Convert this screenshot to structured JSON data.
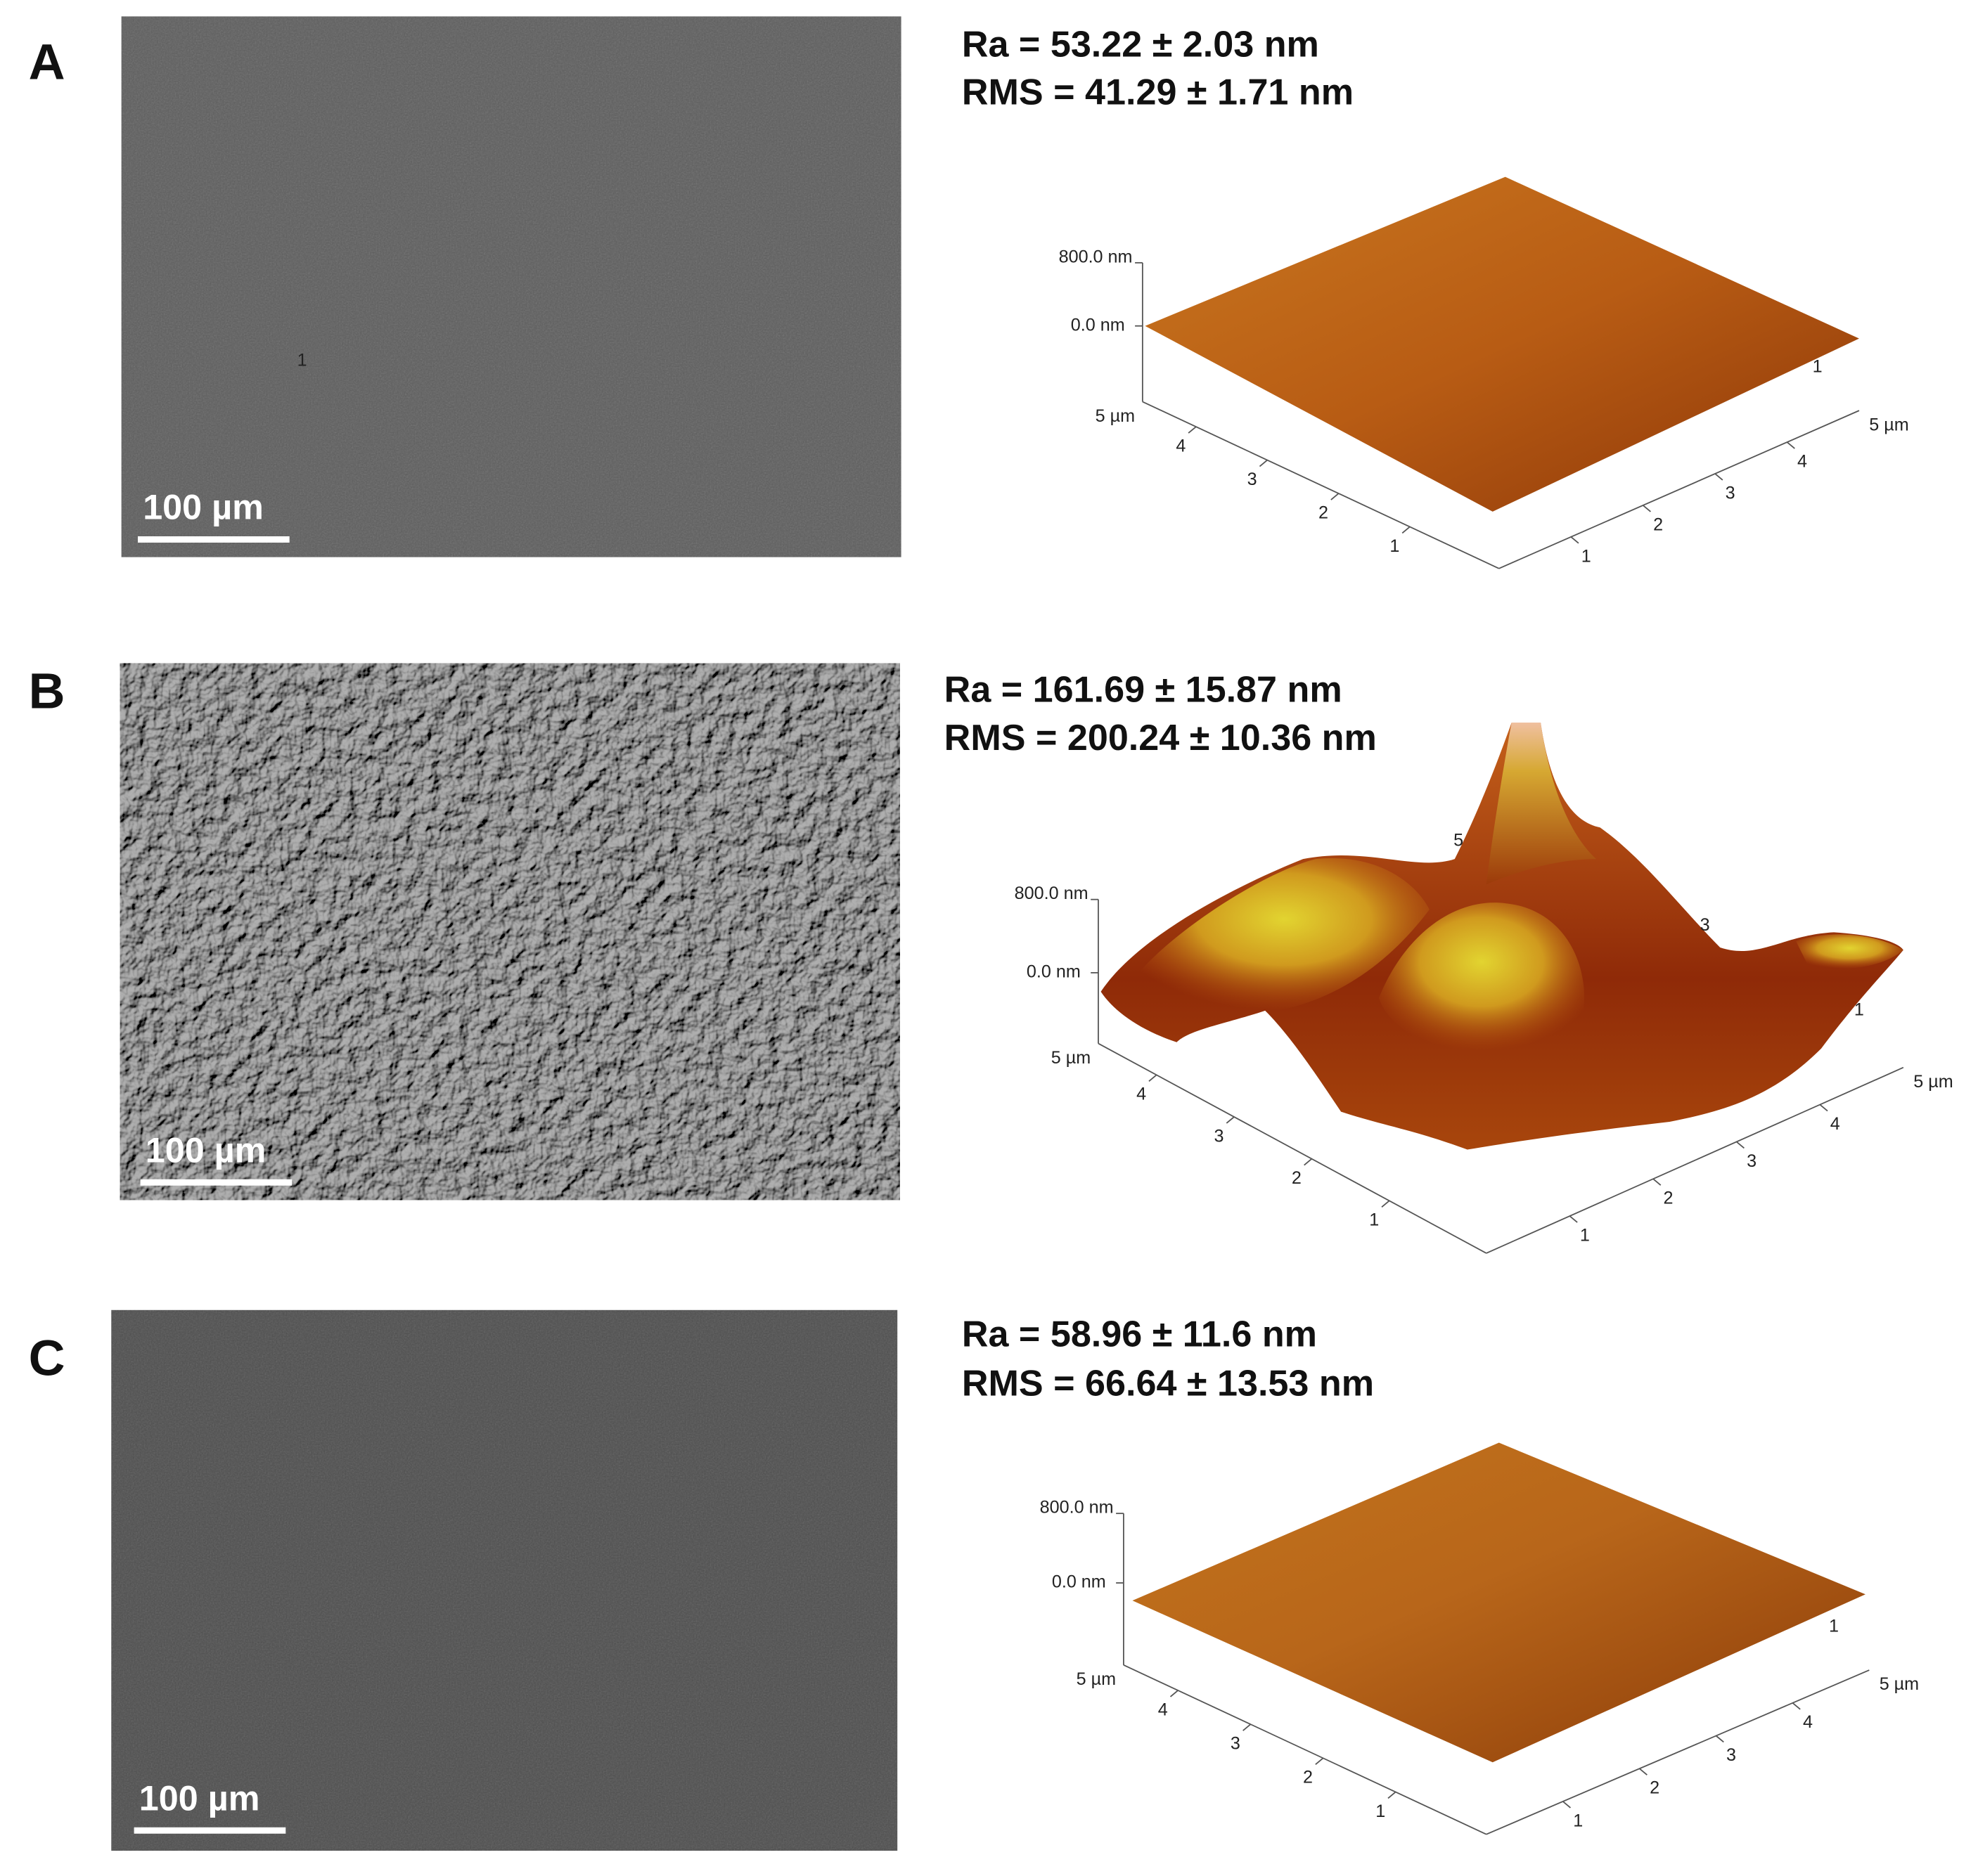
{
  "panels": [
    {
      "label": "A",
      "scale_bar": "100 µm",
      "ra": "Ra = 53.22 ± 2.03 nm",
      "rms": "RMS = 41.29 ± 1.71 nm",
      "afm": {
        "z_top": "800.0 nm",
        "z_zero": "0.0 nm",
        "y_axis_end": "5 µm",
        "y_ticks": [
          "4",
          "3",
          "2",
          "1"
        ],
        "x_ticks": [
          "1",
          "2",
          "3",
          "4"
        ],
        "x_axis_end": "5 µm",
        "extra_labels": [
          "1",
          "1"
        ]
      }
    },
    {
      "label": "B",
      "scale_bar": "100 µm",
      "ra": "Ra = 161.69 ± 15.87 nm",
      "rms": "RMS = 200.24 ± 10.36 nm",
      "afm": {
        "z_top": "800.0 nm",
        "z_zero": "0.0 nm",
        "y_axis_end": "5 µm",
        "y_ticks": [
          "4",
          "3",
          "2",
          "1"
        ],
        "x_ticks": [
          "1",
          "2",
          "3",
          "4"
        ],
        "x_axis_end": "5 µm",
        "extra_labels": [
          "5",
          "3",
          "1"
        ]
      }
    },
    {
      "label": "C",
      "scale_bar": "100 µm",
      "ra": "Ra = 58.96 ± 11.6 nm",
      "rms": "RMS = 66.64 ± 13.53 nm",
      "afm": {
        "z_top": "800.0 nm",
        "z_zero": "0.0 nm",
        "y_axis_end": "5 µm",
        "y_ticks": [
          "4",
          "3",
          "2",
          "1"
        ],
        "x_ticks": [
          "1",
          "2",
          "3",
          "4"
        ],
        "x_axis_end": "5 µm",
        "extra_labels": [
          "1"
        ]
      }
    }
  ]
}
